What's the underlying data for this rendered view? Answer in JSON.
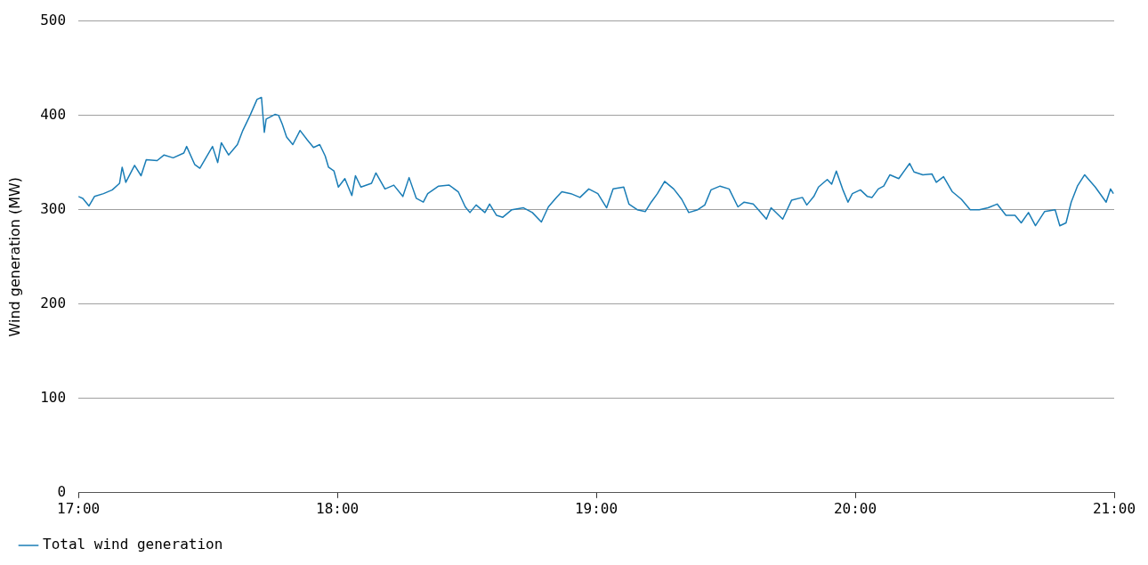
{
  "chart_data": {
    "type": "line",
    "ylabel": "Wind generation (MW)",
    "legend": "bottom",
    "grid": "y",
    "marker": "none",
    "line_style": "solid",
    "xlim": [
      17,
      21
    ],
    "xticks": [
      {
        "value": 17,
        "label": "17:00"
      },
      {
        "value": 18,
        "label": "18:00"
      },
      {
        "value": 19,
        "label": "19:00"
      },
      {
        "value": 20,
        "label": "20:00"
      },
      {
        "value": 21,
        "label": "21:00"
      }
    ],
    "ylim": [
      0,
      500
    ],
    "yticks": [
      0,
      100,
      200,
      300,
      400,
      500
    ],
    "series": [
      {
        "name": "Total wind generation",
        "color": "#1a7db6",
        "x": [
          17,
          17.017,
          17.041,
          17.062,
          17.097,
          17.131,
          17.159,
          17.169,
          17.183,
          17.217,
          17.242,
          17.262,
          17.304,
          17.331,
          17.366,
          17.407,
          17.418,
          17.449,
          17.469,
          17.518,
          17.538,
          17.552,
          17.58,
          17.614,
          17.635,
          17.663,
          17.69,
          17.707,
          17.718,
          17.725,
          17.759,
          17.773,
          17.787,
          17.804,
          17.828,
          17.856,
          17.884,
          17.908,
          17.932,
          17.953,
          17.966,
          17.987,
          18.004,
          18.029,
          18.056,
          18.07,
          18.091,
          18.132,
          18.149,
          18.184,
          18.218,
          18.253,
          18.277,
          18.305,
          18.332,
          18.349,
          18.391,
          18.432,
          18.467,
          18.494,
          18.512,
          18.536,
          18.57,
          18.588,
          18.615,
          18.639,
          18.674,
          18.719,
          18.753,
          18.788,
          18.815,
          18.846,
          18.867,
          18.902,
          18.937,
          18.971,
          19.006,
          19.04,
          19.065,
          19.106,
          19.126,
          19.158,
          19.189,
          19.212,
          19.236,
          19.264,
          19.299,
          19.33,
          19.357,
          19.392,
          19.419,
          19.443,
          19.478,
          19.513,
          19.547,
          19.571,
          19.606,
          19.626,
          19.657,
          19.675,
          19.72,
          19.754,
          19.796,
          19.813,
          19.84,
          19.858,
          19.892,
          19.909,
          19.927,
          19.951,
          19.972,
          19.989,
          20.02,
          20.047,
          20.065,
          20.089,
          20.11,
          20.134,
          20.168,
          20.21,
          20.227,
          20.261,
          20.296,
          20.313,
          20.341,
          20.375,
          20.41,
          20.444,
          20.479,
          20.513,
          20.548,
          20.582,
          20.617,
          20.641,
          20.669,
          20.696,
          20.731,
          20.772,
          20.79,
          20.814,
          20.834,
          20.858,
          20.886,
          20.927,
          20.969,
          20.986,
          20.997
        ],
        "values": [
          314,
          312,
          304,
          314,
          317,
          321,
          328,
          345,
          329,
          347,
          336,
          353,
          352,
          358,
          355,
          360,
          367,
          348,
          344,
          367,
          350,
          371,
          358,
          369,
          384,
          400,
          417,
          419,
          382,
          396,
          401,
          400,
          391,
          377,
          369,
          384,
          374,
          366,
          369,
          357,
          345,
          341,
          324,
          333,
          315,
          336,
          324,
          328,
          339,
          322,
          326,
          314,
          334,
          312,
          308,
          317,
          325,
          326,
          319,
          303,
          297,
          305,
          297,
          306,
          294,
          292,
          300,
          302,
          297,
          287,
          303,
          313,
          319,
          317,
          313,
          322,
          317,
          302,
          322,
          324,
          306,
          300,
          298,
          308,
          317,
          330,
          322,
          311,
          297,
          300,
          305,
          321,
          325,
          322,
          303,
          308,
          306,
          300,
          290,
          302,
          290,
          310,
          313,
          305,
          314,
          324,
          332,
          327,
          341,
          322,
          308,
          317,
          321,
          314,
          313,
          322,
          325,
          337,
          333,
          349,
          340,
          337,
          338,
          329,
          335,
          319,
          311,
          300,
          300,
          302,
          306,
          294,
          294,
          286,
          297,
          283,
          298,
          300,
          283,
          286,
          308,
          325,
          337,
          324,
          308,
          322,
          317
        ]
      }
    ]
  }
}
